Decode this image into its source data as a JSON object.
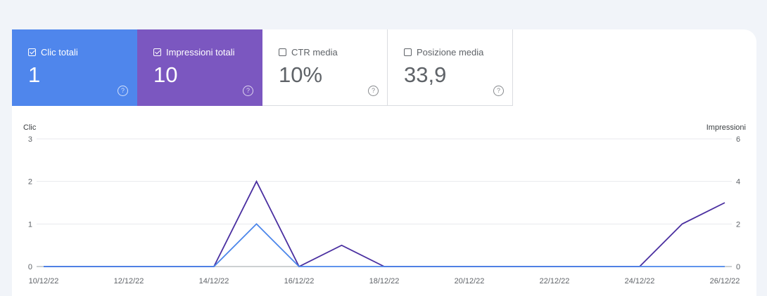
{
  "metrics": [
    {
      "label": "Clic totali",
      "value": "1",
      "checked": true,
      "color": "#4f86ec"
    },
    {
      "label": "Impressioni totali",
      "value": "10",
      "checked": true,
      "color": "#7b57c0"
    },
    {
      "label": "CTR media",
      "value": "10%",
      "checked": false
    },
    {
      "label": "Posizione media",
      "value": "33,9",
      "checked": false
    }
  ],
  "help_glyph": "?",
  "chart_data": {
    "type": "line",
    "left_axis_label": "Clic",
    "right_axis_label": "Impressioni",
    "left_ticks": [
      0,
      1,
      2,
      3
    ],
    "right_ticks": [
      0,
      2,
      4,
      6
    ],
    "ylim_left": [
      0,
      3
    ],
    "ylim_right": [
      0,
      6
    ],
    "x_tick_labels": [
      "10/12/22",
      "12/12/22",
      "14/12/22",
      "16/12/22",
      "18/12/22",
      "20/12/22",
      "22/12/22",
      "24/12/22",
      "26/12/22"
    ],
    "x": [
      "10/12/22",
      "11/12/22",
      "12/12/22",
      "13/12/22",
      "14/12/22",
      "15/12/22",
      "16/12/22",
      "17/12/22",
      "18/12/22",
      "19/12/22",
      "20/12/22",
      "21/12/22",
      "22/12/22",
      "23/12/22",
      "24/12/22",
      "25/12/22",
      "26/12/22"
    ],
    "series": [
      {
        "axis": "right",
        "color": "#4a2fa0",
        "values": [
          0,
          0,
          0,
          0,
          0,
          4,
          0,
          1,
          0,
          0,
          0,
          0,
          0,
          0,
          0,
          2,
          3
        ]
      },
      {
        "axis": "left",
        "color": "#4a85ea",
        "values": [
          0,
          0,
          0,
          0,
          0,
          1,
          0,
          0,
          0,
          0,
          0,
          0,
          0,
          0,
          0,
          0,
          0
        ]
      }
    ],
    "grid": true
  }
}
